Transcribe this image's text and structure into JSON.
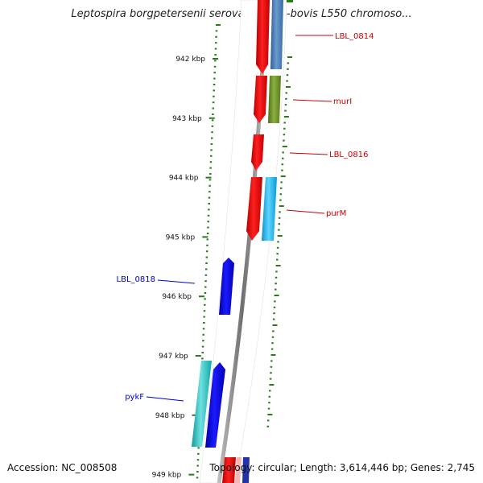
{
  "title": "Leptospira borgpetersenii serovar Hardjo-bovis L550 chromoso...",
  "footer": {
    "accession": "Accession: NC_008508",
    "summary": "Topology: circular; Length: 3,614,446 bp; Genes: 2,745"
  },
  "scale": {
    "unit": "kbp",
    "ticks": [
      {
        "kbp": 942,
        "label": "942 kbp"
      },
      {
        "kbp": 943,
        "label": "943 kbp"
      },
      {
        "kbp": 944,
        "label": "944 kbp"
      },
      {
        "kbp": 945,
        "label": "945 kbp"
      },
      {
        "kbp": 946,
        "label": "946 kbp"
      },
      {
        "kbp": 947,
        "label": "947 kbp"
      },
      {
        "kbp": 948,
        "label": "948 kbp"
      },
      {
        "kbp": 949,
        "label": "949 kbp"
      }
    ]
  },
  "genes": [
    {
      "name": "LBL_0814",
      "strand": "+",
      "color": "#cc0000"
    },
    {
      "name": "murI",
      "strand": "+",
      "color": "#cc0000"
    },
    {
      "name": "LBL_0816",
      "strand": "+",
      "color": "#cc0000"
    },
    {
      "name": "purM",
      "strand": "+",
      "color": "#cc0000"
    },
    {
      "name": "LBL_0818",
      "strand": "-",
      "color": "#0000cc"
    },
    {
      "name": "pykF",
      "strand": "-",
      "color": "#0000cc"
    }
  ],
  "colors": {
    "forward_cds": "#ff0000",
    "reverse_cds": "#0000ee",
    "backbone": "#888888",
    "gc_dots": "#2a7a1a",
    "cog_blue": "#4a7fb5",
    "cog_olive": "#6b8e23",
    "cog_cyan": "#1ab8e8",
    "cog_teal": "#20c0c0"
  }
}
